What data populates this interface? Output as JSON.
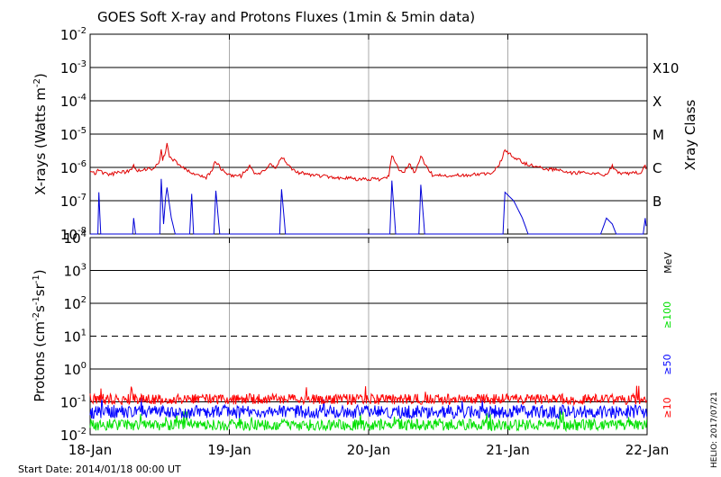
{
  "title": "GOES Soft X-ray and Protons Fluxes   (1min & 5min data)",
  "start_date": "Start Date: 2014/01/18 00:00 UT",
  "credit": "HELIO: 2017/07/21",
  "colors": {
    "xray_long": "#e00000",
    "xray_short": "#0000d8",
    "p10": "#ff0000",
    "p50": "#0000ff",
    "p100": "#00e000",
    "axis": "#000000",
    "grid": "#aaaaaa"
  },
  "chart_data": [
    {
      "type": "line",
      "panel": "xrays",
      "ylabel": "X-rays (Watts m-2)",
      "yscale": "log",
      "ylim": [
        1e-08,
        0.01
      ],
      "y_tick_labels": [
        "10-8",
        "10-7",
        "10-6",
        "10-5",
        "10-4",
        "10-3",
        "10-2"
      ],
      "right_label": "Xray Class",
      "class_labels": [
        {
          "label": "B",
          "flux": 1e-07
        },
        {
          "label": "C",
          "flux": 1e-06
        },
        {
          "label": "M",
          "flux": 1e-05
        },
        {
          "label": "X",
          "flux": 0.0001
        },
        {
          "label": "X10",
          "flux": 0.001
        }
      ],
      "x_tick_labels": [
        "18-Jan",
        "19-Jan",
        "20-Jan",
        "21-Jan",
        "22-Jan"
      ],
      "xlim": [
        "2014-01-18T00:00",
        "2014-01-22T00:00"
      ],
      "series": [
        {
          "key": "long",
          "points": [
            [
              "2014-01-18T00:00",
              7e-07
            ],
            [
              "2014-01-18T01:00",
              6.5e-07
            ],
            [
              "2014-01-18T01:30",
              9e-07
            ],
            [
              "2014-01-18T02:00",
              7e-07
            ],
            [
              "2014-01-18T03:00",
              6e-07
            ],
            [
              "2014-01-18T04:00",
              6.5e-07
            ],
            [
              "2014-01-18T05:00",
              7.5e-07
            ],
            [
              "2014-01-18T06:00",
              7e-07
            ],
            [
              "2014-01-18T07:00",
              8.5e-07
            ],
            [
              "2014-01-18T07:30",
              1.2e-06
            ],
            [
              "2014-01-18T08:00",
              8e-07
            ],
            [
              "2014-01-18T09:00",
              8e-07
            ],
            [
              "2014-01-18T10:00",
              9e-07
            ],
            [
              "2014-01-18T11:00",
              9e-07
            ],
            [
              "2014-01-18T12:00",
              1.6e-06
            ],
            [
              "2014-01-18T12:15",
              4e-06
            ],
            [
              "2014-01-18T12:30",
              1.8e-06
            ],
            [
              "2014-01-18T13:00",
              3e-06
            ],
            [
              "2014-01-18T13:15",
              5.5e-06
            ],
            [
              "2014-01-18T13:40",
              2e-06
            ],
            [
              "2014-01-18T14:30",
              1.6e-06
            ],
            [
              "2014-01-18T15:30",
              1.1e-06
            ],
            [
              "2014-01-18T17:00",
              8e-07
            ],
            [
              "2014-01-18T18:00",
              6e-07
            ],
            [
              "2014-01-18T20:00",
              5e-07
            ],
            [
              "2014-01-18T21:00",
              8e-07
            ],
            [
              "2014-01-18T21:40",
              1.6e-06
            ],
            [
              "2014-01-18T22:30",
              9e-07
            ],
            [
              "2014-01-19T00:00",
              6e-07
            ],
            [
              "2014-01-19T02:00",
              5.5e-07
            ],
            [
              "2014-01-19T03:30",
              1.1e-06
            ],
            [
              "2014-01-19T04:30",
              6e-07
            ],
            [
              "2014-01-19T06:00",
              8e-07
            ],
            [
              "2014-01-19T07:00",
              1.4e-06
            ],
            [
              "2014-01-19T08:00",
              9e-07
            ],
            [
              "2014-01-19T09:00",
              2.2e-06
            ],
            [
              "2014-01-19T10:00",
              1.2e-06
            ],
            [
              "2014-01-19T11:00",
              8e-07
            ],
            [
              "2014-01-19T12:00",
              7e-07
            ],
            [
              "2014-01-19T14:00",
              6e-07
            ],
            [
              "2014-01-19T16:00",
              5.5e-07
            ],
            [
              "2014-01-19T18:00",
              5e-07
            ],
            [
              "2014-01-19T20:00",
              5e-07
            ],
            [
              "2014-01-19T22:00",
              4.5e-07
            ],
            [
              "2014-01-20T00:00",
              4.5e-07
            ],
            [
              "2014-01-20T02:00",
              4.5e-07
            ],
            [
              "2014-01-20T03:30",
              5.5e-07
            ],
            [
              "2014-01-20T04:00",
              2.4e-06
            ],
            [
              "2014-01-20T05:00",
              1e-06
            ],
            [
              "2014-01-20T06:00",
              7e-07
            ],
            [
              "2014-01-20T07:00",
              1.3e-06
            ],
            [
              "2014-01-20T08:00",
              7e-07
            ],
            [
              "2014-01-20T09:00",
              2.2e-06
            ],
            [
              "2014-01-20T10:00",
              1e-06
            ],
            [
              "2014-01-20T11:00",
              6e-07
            ],
            [
              "2014-01-20T13:00",
              5.5e-07
            ],
            [
              "2014-01-20T15:00",
              6e-07
            ],
            [
              "2014-01-20T17:00",
              6e-07
            ],
            [
              "2014-01-20T19:00",
              6.5e-07
            ],
            [
              "2014-01-20T21:00",
              6.5e-07
            ],
            [
              "2014-01-20T22:30",
              1.2e-06
            ],
            [
              "2014-01-20T23:30",
              3.2e-06
            ],
            [
              "2014-01-21T01:00",
              2e-06
            ],
            [
              "2014-01-21T03:00",
              1.3e-06
            ],
            [
              "2014-01-21T05:00",
              1e-06
            ],
            [
              "2014-01-21T07:00",
              9e-07
            ],
            [
              "2014-01-21T09:00",
              8e-07
            ],
            [
              "2014-01-21T11:00",
              7e-07
            ],
            [
              "2014-01-21T13:00",
              7e-07
            ],
            [
              "2014-01-21T15:00",
              6.5e-07
            ],
            [
              "2014-01-21T17:00",
              6e-07
            ],
            [
              "2014-01-21T18:00",
              1.1e-06
            ],
            [
              "2014-01-21T19:00",
              7e-07
            ],
            [
              "2014-01-21T21:00",
              6.5e-07
            ],
            [
              "2014-01-21T23:00",
              7e-07
            ],
            [
              "2014-01-21T23:30",
              1.2e-06
            ],
            [
              "2014-01-22T00:00",
              8e-07
            ]
          ]
        },
        {
          "key": "short",
          "points": [
            [
              "2014-01-18T00:00",
              1e-08
            ],
            [
              "2014-01-18T01:20",
              1e-08
            ],
            [
              "2014-01-18T01:30",
              1.8e-07
            ],
            [
              "2014-01-18T01:50",
              1e-08
            ],
            [
              "2014-01-18T07:20",
              1e-08
            ],
            [
              "2014-01-18T07:30",
              3e-08
            ],
            [
              "2014-01-18T07:50",
              1e-08
            ],
            [
              "2014-01-18T12:00",
              1e-08
            ],
            [
              "2014-01-18T12:15",
              4.5e-07
            ],
            [
              "2014-01-18T12:40",
              2e-08
            ],
            [
              "2014-01-18T13:00",
              1.2e-07
            ],
            [
              "2014-01-18T13:15",
              2.5e-07
            ],
            [
              "2014-01-18T14:00",
              3e-08
            ],
            [
              "2014-01-18T14:40",
              1e-08
            ],
            [
              "2014-01-18T17:10",
              1e-08
            ],
            [
              "2014-01-18T17:30",
              1.6e-07
            ],
            [
              "2014-01-18T17:50",
              1e-08
            ],
            [
              "2014-01-18T21:20",
              1e-08
            ],
            [
              "2014-01-18T21:40",
              2e-07
            ],
            [
              "2014-01-18T22:20",
              1e-08
            ],
            [
              "2014-01-19T08:40",
              1e-08
            ],
            [
              "2014-01-19T09:00",
              2.2e-07
            ],
            [
              "2014-01-19T09:40",
              1e-08
            ],
            [
              "2014-01-20T03:40",
              1e-08
            ],
            [
              "2014-01-20T04:00",
              4e-07
            ],
            [
              "2014-01-20T04:40",
              1e-08
            ],
            [
              "2014-01-20T08:40",
              1e-08
            ],
            [
              "2014-01-20T09:00",
              3e-07
            ],
            [
              "2014-01-20T09:40",
              1e-08
            ],
            [
              "2014-01-20T23:10",
              1e-08
            ],
            [
              "2014-01-20T23:30",
              1.8e-07
            ],
            [
              "2014-01-21T01:00",
              1e-07
            ],
            [
              "2014-01-21T02:30",
              3e-08
            ],
            [
              "2014-01-21T03:30",
              1e-08
            ],
            [
              "2014-01-21T16:00",
              1e-08
            ],
            [
              "2014-01-21T17:00",
              3e-08
            ],
            [
              "2014-01-21T18:00",
              2e-08
            ],
            [
              "2014-01-21T18:40",
              1e-08
            ],
            [
              "2014-01-21T23:20",
              1e-08
            ],
            [
              "2014-01-21T23:40",
              3e-08
            ],
            [
              "2014-01-22T00:00",
              1e-08
            ]
          ]
        }
      ]
    },
    {
      "type": "line",
      "panel": "protons",
      "ylabel": "Protons (cm-2s-1sr-1)",
      "yscale": "log",
      "ylim": [
        0.01,
        10000
      ],
      "y_tick_labels": [
        "10-2",
        "10-1",
        "100",
        "101",
        "102",
        "103",
        "104"
      ],
      "threshold": 10,
      "right_unit": "MeV",
      "x_tick_labels": [
        "18-Jan",
        "19-Jan",
        "20-Jan",
        "21-Jan",
        "22-Jan"
      ],
      "xlim": [
        "2014-01-18T00:00",
        "2014-01-22T00:00"
      ],
      "series": [
        {
          "name": "≥10",
          "key": "p10",
          "level": 0.12,
          "scatter_factor": 1.45
        },
        {
          "name": "≥50",
          "key": "p50",
          "level": 0.05,
          "scatter_factor": 1.6
        },
        {
          "name": "≥100",
          "key": "p100",
          "level": 0.02,
          "scatter_factor": 1.5
        }
      ]
    }
  ]
}
